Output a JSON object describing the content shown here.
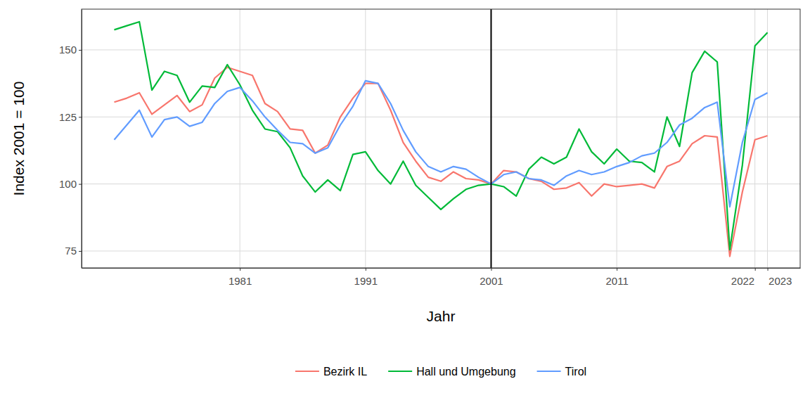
{
  "chart_data": {
    "type": "line",
    "x_label": "Jahr",
    "y_label": "Index 2001 = 100",
    "x": [
      1971,
      1972,
      1973,
      1974,
      1975,
      1976,
      1977,
      1978,
      1979,
      1980,
      1981,
      1982,
      1983,
      1984,
      1985,
      1986,
      1987,
      1988,
      1989,
      1990,
      1991,
      1992,
      1993,
      1994,
      1995,
      1996,
      1997,
      1998,
      1999,
      2000,
      2001,
      2002,
      2003,
      2004,
      2005,
      2006,
      2007,
      2008,
      2009,
      2010,
      2011,
      2012,
      2013,
      2014,
      2015,
      2016,
      2017,
      2018,
      2019,
      2020,
      2021,
      2022,
      2023
    ],
    "series": [
      {
        "name": "Bezirk IL",
        "color": "#F8766D",
        "values": [
          130.5,
          132,
          134,
          126,
          129.5,
          133,
          127,
          129.5,
          139.5,
          143.5,
          142,
          140.5,
          130,
          127,
          120.5,
          120,
          111.5,
          114.5,
          125,
          132,
          137.5,
          137.5,
          127.5,
          115.5,
          108.5,
          102.5,
          101,
          104.5,
          102,
          101.5,
          100,
          105,
          104.5,
          102,
          101,
          98,
          98.5,
          100.5,
          95.5,
          100,
          99,
          99.5,
          100,
          98.5,
          106.5,
          108.5,
          115,
          118,
          117.5,
          73,
          97,
          116.5,
          118
        ]
      },
      {
        "name": "Hall und Umgebung",
        "color": "#00BA38",
        "values": [
          157.5,
          159,
          160.5,
          135,
          142,
          140.5,
          130.5,
          136.5,
          136,
          144.5,
          137,
          127.5,
          120.5,
          119.5,
          113.5,
          103,
          97,
          101.5,
          97.5,
          111,
          112,
          105,
          100,
          108.5,
          99.5,
          95,
          90.5,
          94.5,
          98,
          99.5,
          100,
          99,
          95.5,
          105.5,
          110,
          107.5,
          110,
          120.5,
          112,
          107.5,
          113,
          108.5,
          108,
          104.5,
          125,
          114,
          141.5,
          149.5,
          145.5,
          75.5,
          107,
          151.5,
          156.5
        ]
      },
      {
        "name": "Tirol",
        "color": "#619CFF",
        "values": [
          116.5,
          122,
          127.5,
          117.5,
          124,
          125,
          121.5,
          123,
          130,
          134.5,
          136,
          131,
          125,
          120,
          115.5,
          115,
          111.5,
          113.5,
          122,
          129,
          138.5,
          137.5,
          130,
          120,
          112,
          106.5,
          104.5,
          106.5,
          105.5,
          102.5,
          100,
          103.5,
          104.5,
          102,
          101.5,
          99.5,
          103,
          105,
          103.5,
          104.5,
          106.5,
          108,
          110.5,
          111.5,
          115.5,
          122,
          124.5,
          128.5,
          130.5,
          91.5,
          115.5,
          131.5,
          134
        ]
      }
    ],
    "vline": 2001,
    "xlim": [
      1968.4,
      2025.6
    ],
    "xticks": [
      1981,
      1991,
      2001,
      2011,
      2022,
      2023
    ],
    "ylim": [
      68.7,
      165.2
    ],
    "yticks": [
      75,
      100,
      125,
      150
    ],
    "grid": true,
    "legend": "bottom"
  }
}
